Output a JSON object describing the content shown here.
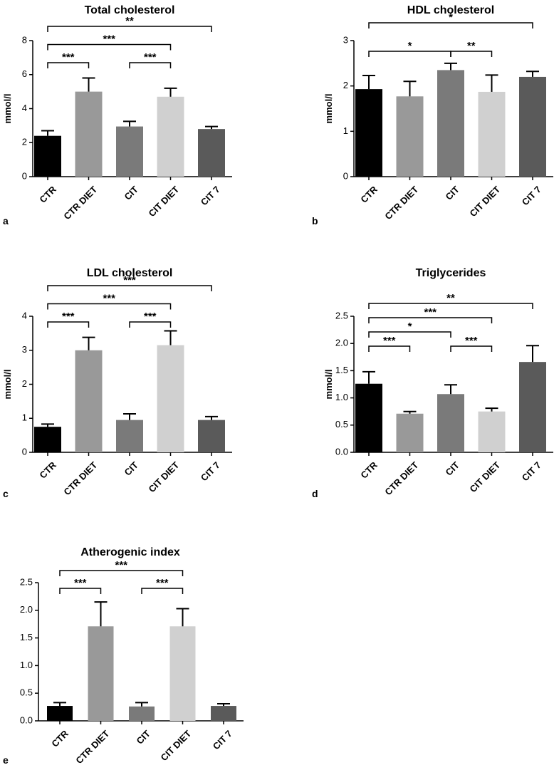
{
  "chart_data": [
    {
      "type": "bar",
      "panel": "a",
      "title": "Total cholesterol",
      "ylabel": "mmol/l",
      "categories": [
        "CTR",
        "CTR DIET",
        "CIT",
        "CIT DIET",
        "CIT 7"
      ],
      "values": [
        2.4,
        5.0,
        2.95,
        4.7,
        2.8
      ],
      "errors": [
        0.3,
        0.8,
        0.3,
        0.5,
        0.15
      ],
      "colors": [
        "#000000",
        "#999999",
        "#7a7a7a",
        "#d0d0d0",
        "#5a5a5a"
      ],
      "ylim": [
        0,
        8
      ],
      "yticks": [
        "0",
        "2",
        "4",
        "6",
        "8"
      ],
      "significance": [
        {
          "from": 0,
          "to": 4,
          "label": "**"
        },
        {
          "from": 0,
          "to": 3,
          "label": "***"
        },
        {
          "from": 0,
          "to": 1,
          "label": "***"
        },
        {
          "from": 2,
          "to": 3,
          "label": "***"
        }
      ]
    },
    {
      "type": "bar",
      "panel": "b",
      "title": "HDL cholesterol",
      "ylabel": "mmol/l",
      "categories": [
        "CTR",
        "CTR DIET",
        "CIT",
        "CIT DIET",
        "CIT 7"
      ],
      "values": [
        1.93,
        1.77,
        2.35,
        1.87,
        2.2
      ],
      "errors": [
        0.3,
        0.33,
        0.15,
        0.37,
        0.12
      ],
      "colors": [
        "#000000",
        "#999999",
        "#7a7a7a",
        "#d0d0d0",
        "#5a5a5a"
      ],
      "ylim": [
        0,
        3
      ],
      "yticks": [
        "0",
        "1",
        "2",
        "3"
      ],
      "significance": [
        {
          "from": 0,
          "to": 4,
          "label": "*"
        },
        {
          "from": 0,
          "to": 2,
          "label": "*"
        },
        {
          "from": 2,
          "to": 3,
          "label": "**"
        }
      ]
    },
    {
      "type": "bar",
      "panel": "c",
      "title": "LDL cholesterol",
      "ylabel": "mmol/l",
      "categories": [
        "CTR",
        "CTR DIET",
        "CIT",
        "CIT DIET",
        "CIT 7"
      ],
      "values": [
        0.75,
        3.0,
        0.95,
        3.15,
        0.95
      ],
      "errors": [
        0.08,
        0.38,
        0.18,
        0.42,
        0.1
      ],
      "colors": [
        "#000000",
        "#999999",
        "#7a7a7a",
        "#d0d0d0",
        "#5a5a5a"
      ],
      "ylim": [
        0,
        4
      ],
      "yticks": [
        "0",
        "1",
        "2",
        "3",
        "4"
      ],
      "significance": [
        {
          "from": 0,
          "to": 4,
          "label": "***"
        },
        {
          "from": 0,
          "to": 3,
          "label": "***"
        },
        {
          "from": 0,
          "to": 1,
          "label": "***"
        },
        {
          "from": 2,
          "to": 3,
          "label": "***"
        }
      ]
    },
    {
      "type": "bar",
      "panel": "d",
      "title": "Triglycerides",
      "ylabel": "mmol/l",
      "categories": [
        "CTR",
        "CTR DIET",
        "CIT",
        "CIT DIET",
        "CIT 7"
      ],
      "values": [
        1.26,
        0.71,
        1.07,
        0.75,
        1.66
      ],
      "errors": [
        0.22,
        0.04,
        0.17,
        0.06,
        0.3
      ],
      "colors": [
        "#000000",
        "#999999",
        "#7a7a7a",
        "#d0d0d0",
        "#5a5a5a"
      ],
      "ylim": [
        0,
        2.5
      ],
      "yticks": [
        "0.0",
        "0.5",
        "1.0",
        "1.5",
        "2.0",
        "2.5"
      ],
      "significance": [
        {
          "from": 0,
          "to": 4,
          "label": "**"
        },
        {
          "from": 0,
          "to": 3,
          "label": "***"
        },
        {
          "from": 0,
          "to": 2,
          "label": "*"
        },
        {
          "from": 0,
          "to": 1,
          "label": "***"
        },
        {
          "from": 2,
          "to": 3,
          "label": "***"
        }
      ]
    },
    {
      "type": "bar",
      "panel": "e",
      "title": "Atherogenic index",
      "ylabel": "",
      "categories": [
        "CTR",
        "CTR DIET",
        "CIT",
        "CIT DIET",
        "CIT 7"
      ],
      "values": [
        0.27,
        1.71,
        0.26,
        1.71,
        0.27
      ],
      "errors": [
        0.06,
        0.44,
        0.07,
        0.32,
        0.04
      ],
      "colors": [
        "#000000",
        "#999999",
        "#7a7a7a",
        "#d0d0d0",
        "#5a5a5a"
      ],
      "ylim": [
        0,
        2.5
      ],
      "yticks": [
        "0.0",
        "0.5",
        "1.0",
        "1.5",
        "2.0",
        "2.5"
      ],
      "significance": [
        {
          "from": 0,
          "to": 3,
          "label": "***"
        },
        {
          "from": 0,
          "to": 1,
          "label": "***"
        },
        {
          "from": 2,
          "to": 3,
          "label": "***"
        }
      ]
    }
  ]
}
